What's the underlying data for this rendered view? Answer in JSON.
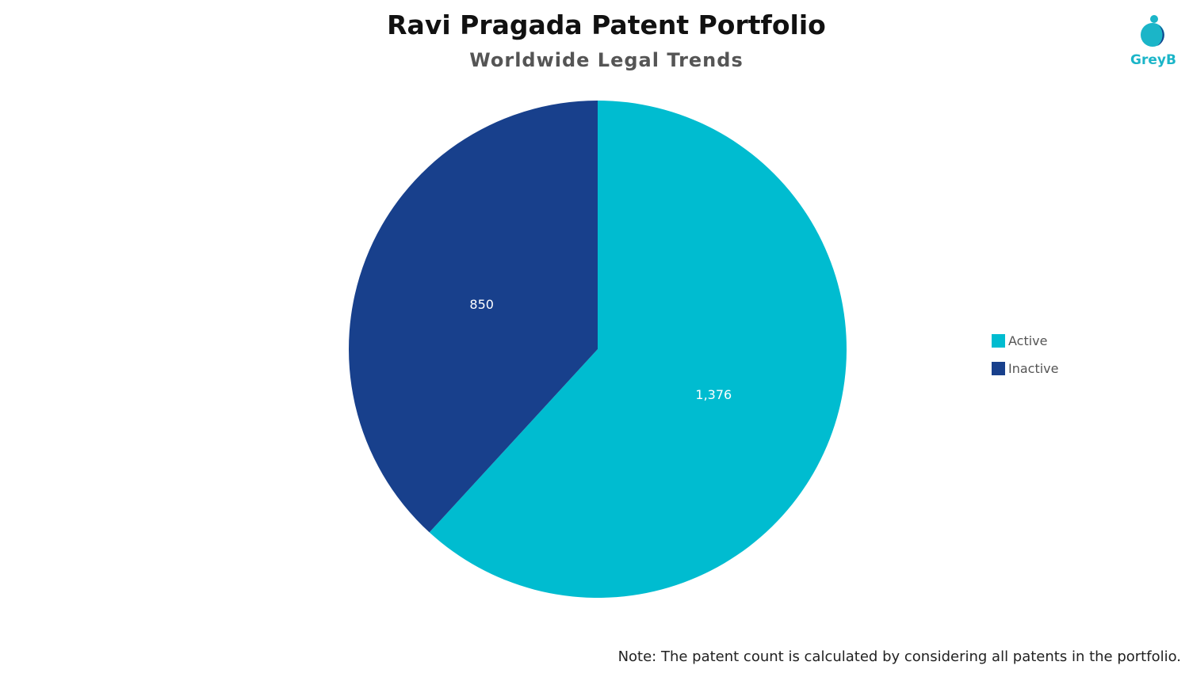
{
  "header": {
    "title": "Ravi Pragada Patent Portfolio",
    "subtitle": "Worldwide Legal Trends"
  },
  "logo": {
    "text": "GreyB",
    "icon": "greyb-logo-icon",
    "color": "#1bb5c8"
  },
  "chart_data": {
    "type": "pie",
    "title": "Ravi Pragada Patent Portfolio",
    "subtitle": "Worldwide Legal Trends",
    "slices": [
      {
        "name": "Active",
        "value": 1376,
        "label": "1,376",
        "color": "#00bcd0"
      },
      {
        "name": "Inactive",
        "value": 850,
        "label": "850",
        "color": "#18408c"
      }
    ],
    "start_angle_deg": 0,
    "direction": "clockwise",
    "legend_position": "right"
  },
  "legend": {
    "items": [
      {
        "label": "Active",
        "color": "#00bcd0"
      },
      {
        "label": "Inactive",
        "color": "#18408c"
      }
    ]
  },
  "footer": {
    "note": "Note: The patent count is calculated by considering all patents in the portfolio."
  }
}
